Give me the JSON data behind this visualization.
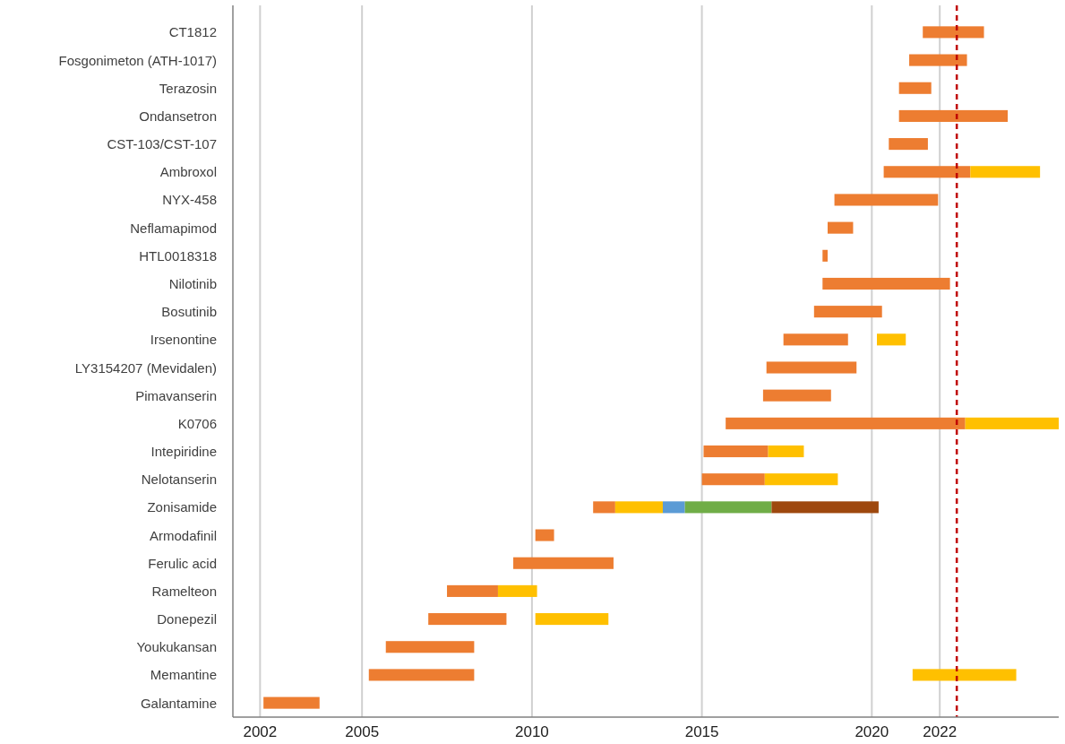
{
  "chart_data": {
    "type": "bar",
    "orientation": "horizontal",
    "categories": [
      "CT1812",
      "Fosgonimeton (ATH-1017)",
      "Terazosin",
      "Ondansetron",
      "CST-103/CST-107",
      "Ambroxol",
      "NYX-458",
      "Neflamapimod",
      "HTL0018318",
      "Nilotinib",
      "Bosutinib",
      "Irsenontine",
      "LY3154207 (Mevidalen)",
      "Pimavanserin",
      "K0706",
      "Intepiridine",
      "Nelotanserin",
      "Zonisamide",
      "Armodafinil",
      "Ferulic acid",
      "Ramelteon",
      "Donepezil",
      "Youkukansan",
      "Memantine",
      "Galantamine"
    ],
    "series": [
      {
        "color": "#ed7d31",
        "base": [
          2021.5,
          2021.1,
          2020.8,
          2020.8,
          2020.5,
          2020.35,
          2018.9,
          2018.7,
          2018.55,
          2018.55,
          2018.3,
          2017.4,
          2016.9,
          2016.8,
          2015.7,
          2015.05,
          2015.0,
          2011.8,
          2010.1,
          2009.45,
          2007.5,
          2006.95,
          2005.7,
          2005.2,
          2002.1
        ],
        "values": [
          1.8,
          1.7,
          0.95,
          3.2,
          1.15,
          2.55,
          3.05,
          0.75,
          0.15,
          3.75,
          2.0,
          1.9,
          2.65,
          2.0,
          7.05,
          1.9,
          1.85,
          0.65,
          0.55,
          2.95,
          1.5,
          2.3,
          2.6,
          3.1,
          1.65
        ]
      },
      {
        "color": "#ffc000",
        "base": [
          null,
          null,
          null,
          null,
          null,
          2022.9,
          null,
          null,
          null,
          null,
          null,
          2020.15,
          null,
          null,
          2022.75,
          2016.95,
          2016.85,
          2012.45,
          null,
          null,
          2009.0,
          2010.1,
          null,
          2021.2,
          null
        ],
        "values": [
          null,
          null,
          null,
          null,
          null,
          2.05,
          null,
          null,
          null,
          null,
          null,
          0.85,
          null,
          null,
          2.75,
          1.05,
          2.15,
          1.4,
          null,
          null,
          1.15,
          2.15,
          null,
          3.05,
          null
        ]
      },
      {
        "color": "#5b9bd5",
        "base": [
          null,
          null,
          null,
          null,
          null,
          null,
          null,
          null,
          null,
          null,
          null,
          null,
          null,
          null,
          null,
          null,
          null,
          2013.85,
          null,
          null,
          null,
          null,
          null,
          null,
          null
        ],
        "values": [
          null,
          null,
          null,
          null,
          null,
          null,
          null,
          null,
          null,
          null,
          null,
          null,
          null,
          null,
          null,
          null,
          null,
          0.65,
          null,
          null,
          null,
          null,
          null,
          null,
          null
        ]
      },
      {
        "color": "#70ad47",
        "base": [
          null,
          null,
          null,
          null,
          null,
          null,
          null,
          null,
          null,
          null,
          null,
          null,
          null,
          null,
          null,
          null,
          null,
          2014.5,
          null,
          null,
          null,
          null,
          null,
          null,
          null
        ],
        "values": [
          null,
          null,
          null,
          null,
          null,
          null,
          null,
          null,
          null,
          null,
          null,
          null,
          null,
          null,
          null,
          null,
          null,
          2.55,
          null,
          null,
          null,
          null,
          null,
          null,
          null
        ]
      },
      {
        "color": "#9e480e",
        "base": [
          null,
          null,
          null,
          null,
          null,
          null,
          null,
          null,
          null,
          null,
          null,
          null,
          null,
          null,
          null,
          null,
          null,
          2017.05,
          null,
          null,
          null,
          null,
          null,
          null,
          null
        ],
        "values": [
          null,
          null,
          null,
          null,
          null,
          null,
          null,
          null,
          null,
          null,
          null,
          null,
          null,
          null,
          null,
          null,
          null,
          3.15,
          null,
          null,
          null,
          null,
          null,
          null,
          null
        ]
      }
    ],
    "xlim": [
      2001.2,
      2025.5
    ],
    "xticks": [
      2002,
      2005,
      2010,
      2015,
      2020,
      2022
    ],
    "grid": "x",
    "ref_lines": [
      {
        "axis": "x",
        "value": 2022.5,
        "color": "#c00000",
        "line_style": "dashed"
      }
    ]
  }
}
